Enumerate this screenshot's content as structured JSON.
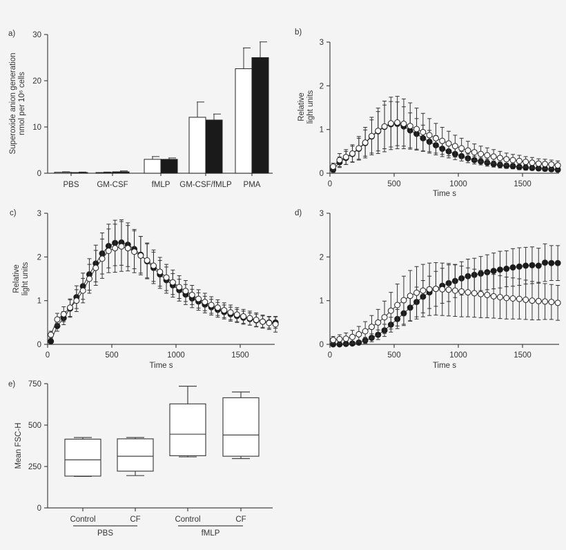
{
  "chart_data": [
    {
      "panel": "a)",
      "type": "bar",
      "ylabel_lines": [
        "Superoxide anion generation",
        "nmol per 10⁶ cells"
      ],
      "ylim": [
        0,
        30
      ],
      "yticks": [
        "0",
        "10",
        "20",
        "30"
      ],
      "ytick_values": [
        0,
        10,
        20,
        30
      ],
      "categories": [
        "PBS",
        "GM-CSF",
        "fMLP",
        "GM-CSF/fMLP",
        "PMA"
      ],
      "series": [
        {
          "name": "open",
          "fill": "#ffffff",
          "values": [
            0.2,
            0.15,
            3.0,
            12.1,
            22.6
          ],
          "errors": [
            0.1,
            0.1,
            0.6,
            3.3,
            4.5
          ]
        },
        {
          "name": "filled",
          "fill": "#1a1a1a",
          "values": [
            0.15,
            0.3,
            3.0,
            11.5,
            25.0
          ],
          "errors": [
            0.1,
            0.2,
            0.3,
            1.3,
            3.4
          ]
        }
      ]
    },
    {
      "panel": "b)",
      "type": "line",
      "xlabel": "Time s",
      "ylabel_lines": [
        "Relative",
        "light units"
      ],
      "xlim": [
        0,
        1800
      ],
      "ylim": [
        0,
        3
      ],
      "xticks": [
        "0",
        "500",
        "1000",
        "1500"
      ],
      "xtick_values": [
        0,
        500,
        1000,
        1500
      ],
      "yticks": [
        "0",
        "1",
        "2",
        "3"
      ],
      "ytick_values": [
        0,
        1,
        2,
        3
      ],
      "x": [
        25,
        75,
        125,
        175,
        225,
        275,
        325,
        375,
        425,
        475,
        525,
        575,
        625,
        675,
        725,
        775,
        825,
        875,
        925,
        975,
        1025,
        1075,
        1125,
        1175,
        1225,
        1275,
        1325,
        1375,
        1425,
        1475,
        1525,
        1575,
        1625,
        1675,
        1725,
        1775
      ],
      "series": [
        {
          "name": "filled",
          "marker": "filled",
          "values": [
            0.08,
            0.25,
            0.35,
            0.44,
            0.56,
            0.69,
            0.84,
            0.96,
            1.06,
            1.12,
            1.13,
            1.07,
            0.98,
            0.9,
            0.8,
            0.72,
            0.64,
            0.56,
            0.5,
            0.44,
            0.39,
            0.34,
            0.3,
            0.27,
            0.24,
            0.21,
            0.19,
            0.17,
            0.16,
            0.14,
            0.13,
            0.12,
            0.11,
            0.1,
            0.09,
            0.08
          ],
          "errors": [
            0.06,
            0.12,
            0.15,
            0.18,
            0.24,
            0.3,
            0.38,
            0.45,
            0.5,
            0.52,
            0.5,
            0.45,
            0.4,
            0.35,
            0.3,
            0.26,
            0.22,
            0.18,
            0.15,
            0.13,
            0.11,
            0.1,
            0.09,
            0.08,
            0.08,
            0.07,
            0.07,
            0.06,
            0.06,
            0.06,
            0.06,
            0.05,
            0.05,
            0.05,
            0.05,
            0.05
          ]
        },
        {
          "name": "open",
          "marker": "open",
          "values": [
            0.15,
            0.3,
            0.37,
            0.45,
            0.57,
            0.7,
            0.85,
            0.97,
            1.07,
            1.14,
            1.16,
            1.13,
            1.08,
            1.01,
            0.94,
            0.87,
            0.8,
            0.74,
            0.68,
            0.62,
            0.57,
            0.52,
            0.48,
            0.44,
            0.41,
            0.38,
            0.35,
            0.32,
            0.3,
            0.28,
            0.26,
            0.24,
            0.22,
            0.21,
            0.2,
            0.18
          ],
          "errors": [
            0.08,
            0.15,
            0.17,
            0.2,
            0.27,
            0.35,
            0.43,
            0.52,
            0.58,
            0.6,
            0.6,
            0.57,
            0.53,
            0.48,
            0.43,
            0.38,
            0.34,
            0.31,
            0.28,
            0.25,
            0.23,
            0.21,
            0.19,
            0.18,
            0.17,
            0.16,
            0.15,
            0.14,
            0.13,
            0.13,
            0.12,
            0.12,
            0.11,
            0.11,
            0.1,
            0.1
          ]
        }
      ]
    },
    {
      "panel": "c)",
      "type": "line",
      "xlabel": "Time s",
      "ylabel_lines": [
        "Relative",
        "light units"
      ],
      "xlim": [
        0,
        1800
      ],
      "ylim": [
        0,
        3
      ],
      "xticks": [
        "0",
        "500",
        "1000",
        "1500"
      ],
      "xtick_values": [
        0,
        500,
        1000,
        1500
      ],
      "yticks": [
        "0",
        "1",
        "2",
        "3"
      ],
      "ytick_values": [
        0,
        1,
        2,
        3
      ],
      "x": [
        25,
        75,
        125,
        175,
        225,
        275,
        325,
        375,
        425,
        475,
        525,
        575,
        625,
        675,
        725,
        775,
        825,
        875,
        925,
        975,
        1025,
        1075,
        1125,
        1175,
        1225,
        1275,
        1325,
        1375,
        1425,
        1475,
        1525,
        1575,
        1625,
        1675,
        1725,
        1775
      ],
      "series": [
        {
          "name": "filled",
          "marker": "filled",
          "values": [
            0.07,
            0.42,
            0.6,
            0.82,
            1.08,
            1.33,
            1.6,
            1.85,
            2.08,
            2.25,
            2.32,
            2.33,
            2.28,
            2.18,
            2.05,
            1.9,
            1.75,
            1.6,
            1.47,
            1.35,
            1.24,
            1.14,
            1.05,
            0.98,
            0.91,
            0.85,
            0.79,
            0.74,
            0.69,
            0.65,
            0.61,
            0.58,
            0.55,
            0.52,
            0.5,
            0.5
          ],
          "errors": [
            0.05,
            0.12,
            0.15,
            0.2,
            0.26,
            0.3,
            0.36,
            0.42,
            0.47,
            0.5,
            0.52,
            0.52,
            0.5,
            0.45,
            0.42,
            0.4,
            0.36,
            0.32,
            0.3,
            0.27,
            0.25,
            0.23,
            0.21,
            0.2,
            0.19,
            0.18,
            0.17,
            0.16,
            0.16,
            0.15,
            0.15,
            0.14,
            0.14,
            0.13,
            0.13,
            0.13
          ]
        },
        {
          "name": "open",
          "marker": "open",
          "values": [
            0.22,
            0.57,
            0.69,
            0.84,
            1.0,
            1.23,
            1.5,
            1.75,
            1.96,
            2.14,
            2.2,
            2.24,
            2.2,
            2.12,
            2.03,
            1.92,
            1.8,
            1.66,
            1.53,
            1.42,
            1.31,
            1.22,
            1.13,
            1.04,
            0.97,
            0.9,
            0.84,
            0.78,
            0.73,
            0.68,
            0.64,
            0.6,
            0.56,
            0.52,
            0.49,
            0.46
          ],
          "errors": [
            0.08,
            0.14,
            0.17,
            0.2,
            0.25,
            0.28,
            0.33,
            0.4,
            0.45,
            0.5,
            0.55,
            0.57,
            0.52,
            0.48,
            0.44,
            0.4,
            0.36,
            0.33,
            0.3,
            0.28,
            0.26,
            0.24,
            0.22,
            0.21,
            0.2,
            0.19,
            0.18,
            0.17,
            0.17,
            0.16,
            0.16,
            0.16,
            0.16,
            0.15,
            0.15,
            0.18
          ]
        }
      ]
    },
    {
      "panel": "d)",
      "type": "line",
      "xlabel": "Time s",
      "xlim": [
        0,
        1800
      ],
      "ylim": [
        0,
        3
      ],
      "xticks": [
        "0",
        "500",
        "1000",
        "1500"
      ],
      "xtick_values": [
        0,
        500,
        1000,
        1500
      ],
      "yticks": [
        "0",
        "1",
        "2",
        "3"
      ],
      "ytick_values": [
        0,
        1,
        2,
        3
      ],
      "x": [
        25,
        75,
        125,
        175,
        225,
        275,
        325,
        375,
        425,
        475,
        525,
        575,
        625,
        675,
        725,
        775,
        825,
        875,
        925,
        975,
        1025,
        1075,
        1125,
        1175,
        1225,
        1275,
        1325,
        1375,
        1425,
        1475,
        1525,
        1575,
        1625,
        1675,
        1725,
        1775
      ],
      "series": [
        {
          "name": "filled",
          "marker": "filled",
          "values": [
            0,
            0,
            0.01,
            0.02,
            0.04,
            0.09,
            0.15,
            0.22,
            0.32,
            0.45,
            0.58,
            0.71,
            0.84,
            0.97,
            1.09,
            1.19,
            1.27,
            1.34,
            1.4,
            1.45,
            1.51,
            1.56,
            1.59,
            1.62,
            1.65,
            1.68,
            1.71,
            1.73,
            1.76,
            1.78,
            1.8,
            1.81,
            1.8,
            1.87,
            1.86,
            1.86
          ],
          "errors": [
            0.02,
            0.02,
            0.03,
            0.04,
            0.05,
            0.07,
            0.09,
            0.11,
            0.14,
            0.17,
            0.22,
            0.28,
            0.3,
            0.34,
            0.37,
            0.37,
            0.4,
            0.4,
            0.42,
            0.38,
            0.38,
            0.39,
            0.38,
            0.39,
            0.4,
            0.41,
            0.42,
            0.41,
            0.43,
            0.43,
            0.42,
            0.42,
            0.4,
            0.43,
            0.4,
            0.4
          ]
        },
        {
          "name": "open",
          "marker": "open",
          "values": [
            0.1,
            0.12,
            0.13,
            0.17,
            0.23,
            0.3,
            0.4,
            0.5,
            0.62,
            0.77,
            0.9,
            1.01,
            1.11,
            1.18,
            1.23,
            1.26,
            1.27,
            1.26,
            1.25,
            1.23,
            1.21,
            1.19,
            1.17,
            1.15,
            1.13,
            1.1,
            1.08,
            1.06,
            1.05,
            1.04,
            1.02,
            1.0,
            0.99,
            0.98,
            0.97,
            0.95
          ],
          "errors": [
            0.08,
            0.1,
            0.13,
            0.15,
            0.18,
            0.22,
            0.26,
            0.3,
            0.37,
            0.42,
            0.48,
            0.55,
            0.58,
            0.6,
            0.6,
            0.6,
            0.6,
            0.6,
            0.6,
            0.59,
            0.58,
            0.56,
            0.55,
            0.54,
            0.52,
            0.5,
            0.49,
            0.48,
            0.47,
            0.46,
            0.45,
            0.44,
            0.43,
            0.41,
            0.4,
            0.4
          ]
        }
      ]
    },
    {
      "panel": "e)",
      "type": "box",
      "ylabel": "Mean FSC-H",
      "ylim": [
        0,
        750
      ],
      "yticks": [
        "0",
        "250",
        "500",
        "750"
      ],
      "ytick_values": [
        0,
        250,
        500,
        750
      ],
      "categories": [
        "Control",
        "CF",
        "Control",
        "CF"
      ],
      "groups": [
        "PBS",
        "fMLP"
      ],
      "boxes": [
        {
          "min": 190,
          "q1": 192,
          "median": 290,
          "q3": 415,
          "max": 425
        },
        {
          "min": 195,
          "q1": 222,
          "median": 312,
          "q3": 417,
          "max": 425
        },
        {
          "min": 308,
          "q1": 315,
          "median": 445,
          "q3": 628,
          "max": 735
        },
        {
          "min": 298,
          "q1": 312,
          "median": 440,
          "q3": 665,
          "max": 700
        }
      ]
    }
  ]
}
